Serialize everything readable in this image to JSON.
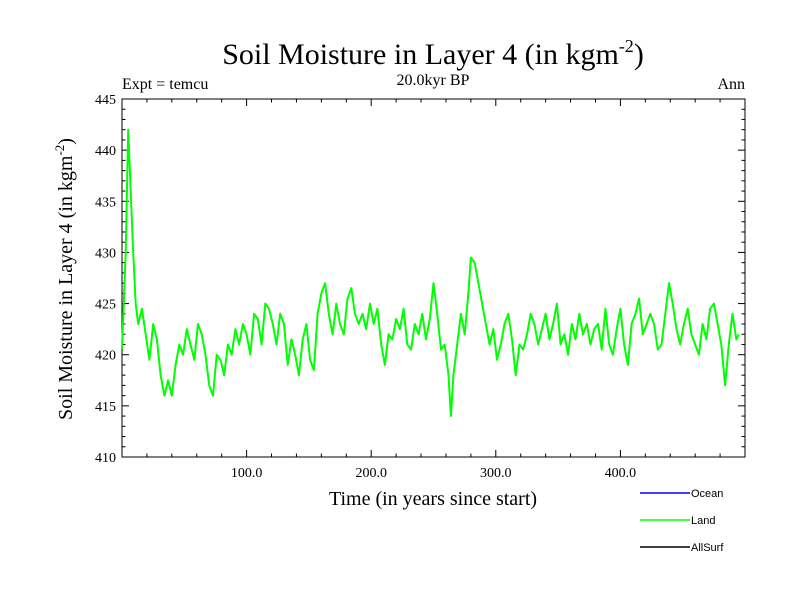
{
  "chart_data": {
    "type": "line",
    "title": "Soil Moisture in Layer 4 (in kgm",
    "title_sup": "-2",
    "title_close": ")",
    "subtitle": "20.0kyr BP",
    "left_label": "Expt = temcu",
    "right_label": "Ann",
    "xlabel": "Time (in years since start)",
    "ylabel": "Soil Moisture in Layer 4 (in kgm",
    "ylabel_sup": "-2",
    "ylabel_close": ")",
    "xlim": [
      0,
      500
    ],
    "ylim": [
      410,
      445
    ],
    "x_ticks": [
      100,
      200,
      300,
      400
    ],
    "x_tick_labels": [
      "100.0",
      "200.0",
      "300.0",
      "400.0"
    ],
    "y_ticks": [
      410,
      415,
      420,
      425,
      430,
      435,
      440,
      445
    ],
    "y_tick_labels": [
      "410",
      "415",
      "420",
      "425",
      "430",
      "435",
      "440",
      "445"
    ],
    "legend": [
      {
        "name": "Ocean",
        "color": "#0000ff"
      },
      {
        "name": "Land",
        "color": "#00ff00"
      },
      {
        "name": "AllSurf",
        "color": "#000000"
      }
    ],
    "series": [
      {
        "name": "Land",
        "color": "#00ff00",
        "x": [
          0,
          3,
          5,
          7,
          9,
          11,
          13,
          16,
          19,
          22,
          25,
          28,
          31,
          34,
          37,
          40,
          43,
          46,
          49,
          52,
          55,
          58,
          61,
          64,
          67,
          70,
          73,
          76,
          79,
          82,
          85,
          88,
          91,
          94,
          97,
          100,
          103,
          106,
          109,
          112,
          115,
          118,
          121,
          124,
          127,
          130,
          133,
          136,
          139,
          142,
          145,
          148,
          151,
          154,
          157,
          160,
          163,
          166,
          169,
          172,
          175,
          178,
          181,
          184,
          187,
          190,
          193,
          196,
          199,
          202,
          205,
          208,
          211,
          214,
          217,
          220,
          223,
          226,
          229,
          232,
          235,
          238,
          241,
          244,
          247,
          250,
          253,
          256,
          259,
          262,
          264,
          266,
          269,
          272,
          275,
          278,
          280,
          283,
          286,
          289,
          292,
          295,
          298,
          301,
          304,
          307,
          310,
          313,
          316,
          319,
          322,
          325,
          328,
          331,
          334,
          337,
          340,
          343,
          346,
          349,
          352,
          355,
          358,
          361,
          364,
          367,
          370,
          373,
          376,
          379,
          382,
          385,
          388,
          391,
          394,
          397,
          400,
          403,
          406,
          409,
          412,
          415,
          418,
          421,
          424,
          427,
          430,
          433,
          436,
          439,
          442,
          445,
          448,
          451,
          454,
          457,
          460,
          463,
          466,
          469,
          472,
          475,
          478,
          481,
          484,
          487,
          490,
          493,
          495
        ],
        "values": [
          420.5,
          430.0,
          442.0,
          436.0,
          430.0,
          425.0,
          423.0,
          424.5,
          422.0,
          419.5,
          423.0,
          421.5,
          418.0,
          416.0,
          417.5,
          416.0,
          419.0,
          421.0,
          420.0,
          422.5,
          421.0,
          419.5,
          423.0,
          422.0,
          420.0,
          417.0,
          416.0,
          420.0,
          419.5,
          418.0,
          421.0,
          420.0,
          422.5,
          421.0,
          423.0,
          422.0,
          420.0,
          424.0,
          423.5,
          421.0,
          425.0,
          424.5,
          423.0,
          421.0,
          424.0,
          423.0,
          419.0,
          421.5,
          420.0,
          418.0,
          421.5,
          423.0,
          419.5,
          418.5,
          424.0,
          426.0,
          427.0,
          424.0,
          422.0,
          425.0,
          423.0,
          422.0,
          425.5,
          426.5,
          424.0,
          423.0,
          424.0,
          422.5,
          425.0,
          423.0,
          424.5,
          421.0,
          419.0,
          422.0,
          421.5,
          423.5,
          422.5,
          424.5,
          421.0,
          420.5,
          423.0,
          422.0,
          424.0,
          421.5,
          423.5,
          427.0,
          424.0,
          420.5,
          421.0,
          418.0,
          414.0,
          418.0,
          421.0,
          424.0,
          422.0,
          426.0,
          429.5,
          429.0,
          427.0,
          425.0,
          423.0,
          421.0,
          422.5,
          419.5,
          421.0,
          423.0,
          424.0,
          421.5,
          418.0,
          421.0,
          420.5,
          422.0,
          424.0,
          423.0,
          421.0,
          422.5,
          424.0,
          421.5,
          423.0,
          425.0,
          421.0,
          422.0,
          420.0,
          423.0,
          421.5,
          424.0,
          422.0,
          423.0,
          421.0,
          422.5,
          423.0,
          420.5,
          424.5,
          421.0,
          420.0,
          422.5,
          424.5,
          421.0,
          419.0,
          423.0,
          424.0,
          425.5,
          422.0,
          423.0,
          424.0,
          423.0,
          420.5,
          421.0,
          424.0,
          427.0,
          425.0,
          422.5,
          421.0,
          423.0,
          424.5,
          422.0,
          421.0,
          420.0,
          423.0,
          421.5,
          424.5,
          425.0,
          423.0,
          421.0,
          417.0,
          421.0,
          424.0,
          421.5,
          422.0
        ]
      }
    ]
  }
}
